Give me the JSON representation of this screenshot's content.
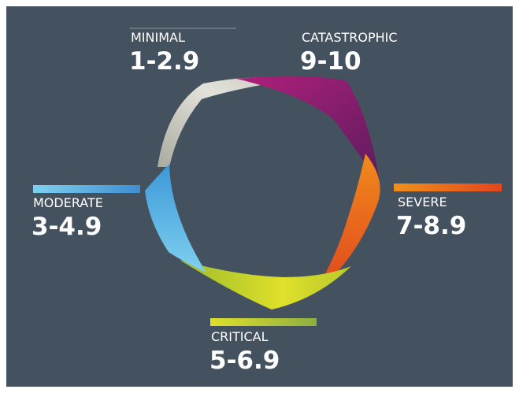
{
  "segments": [
    {
      "label": "MINIMAL",
      "range": "1-2.9"
    },
    {
      "label": "MODERATE",
      "range": "3-4.9"
    },
    {
      "label": "CRITICAL",
      "range": "5-6.9"
    },
    {
      "label": "SEVERE",
      "range": "7-8.9"
    },
    {
      "label": "CATASTROPHIC",
      "range": "9-10"
    }
  ]
}
